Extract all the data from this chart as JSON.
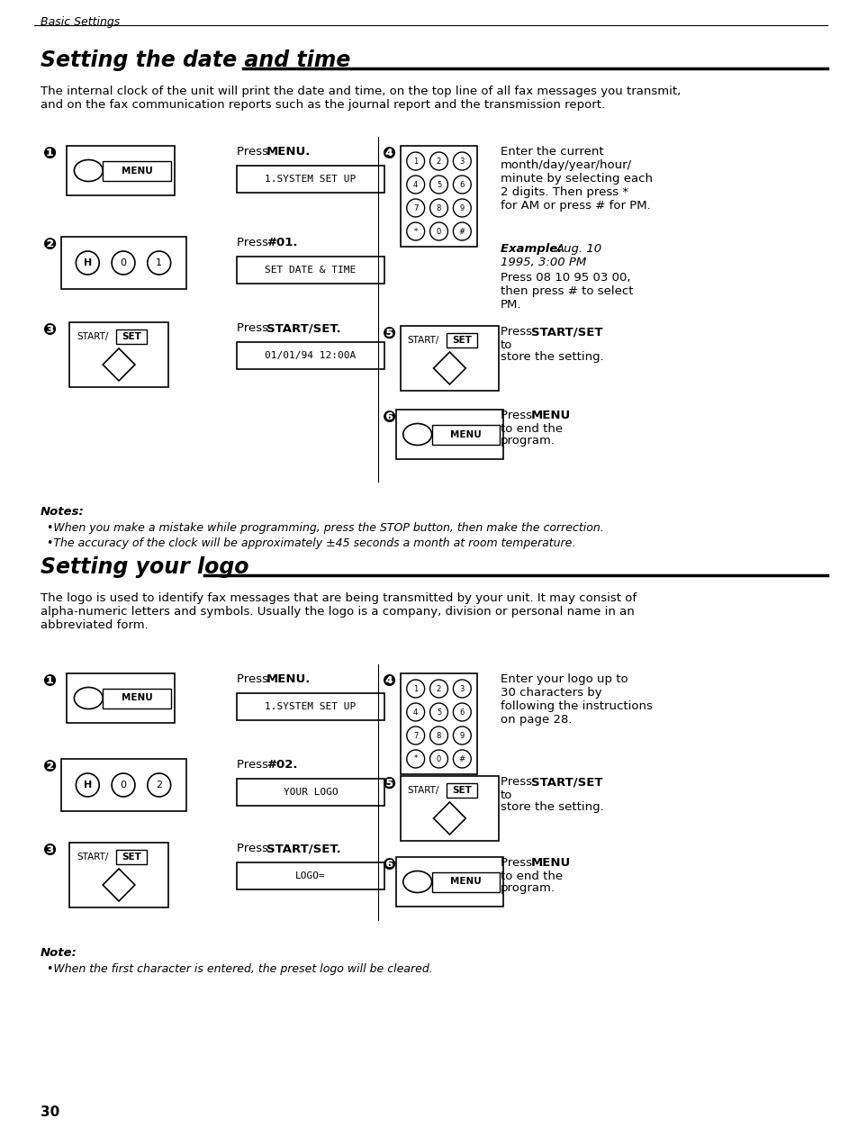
{
  "bg_color": "#ffffff",
  "page_width": 9.54,
  "page_height": 12.53,
  "header_text": "Basic Settings",
  "section1_title": "Setting the date and time",
  "section1_intro": "The internal clock of the unit will print the date and time, on the top line of all fax messages you transmit,\nand on the fax communication reports such as the journal report and the transmission report.",
  "section1_notes_title": "Notes:",
  "section1_notes": [
    "When you make a mistake while programming, press the STOP button, then make the correction.",
    "The accuracy of the clock will be approximately ±45 seconds a month at room temperature."
  ],
  "section2_title": "Setting your logo",
  "section2_intro": "The logo is used to identify fax messages that are being transmitted by your unit. It may consist of\nalpha-numeric letters and symbols. Usually the logo is a company, division or personal name in an\nabbreviated form.",
  "section2_notes_title": "Note:",
  "section2_notes": [
    "When the first character is entered, the preset logo will be cleared."
  ],
  "page_number": "30"
}
